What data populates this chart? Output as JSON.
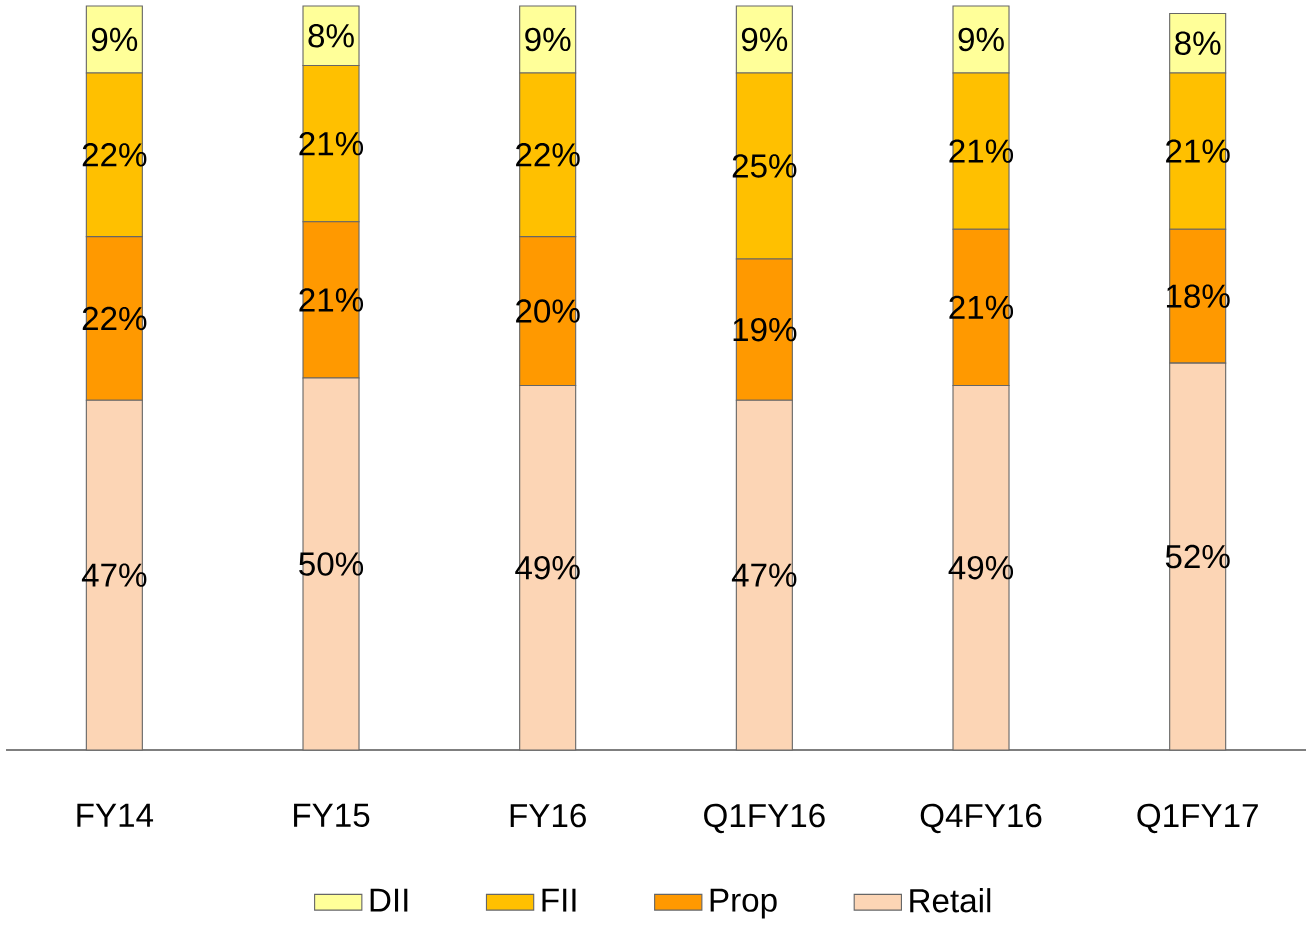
{
  "chart_data": {
    "type": "bar",
    "stacked": true,
    "legend": "bottom",
    "categories": [
      "FY14",
      "FY15",
      "FY16",
      "Q1FY16",
      "Q4FY16",
      "Q1FY17"
    ],
    "series": [
      {
        "name": "Retail",
        "color": "#fcd5b5",
        "values": [
          47,
          50,
          49,
          47,
          49,
          52
        ],
        "value_labels": [
          "47%",
          "50%",
          "49%",
          "47%",
          "49%",
          "52%"
        ]
      },
      {
        "name": "Prop",
        "color": "#ff9900",
        "values": [
          22,
          21,
          20,
          19,
          21,
          18
        ],
        "value_labels": [
          "22%",
          "21%",
          "20%",
          "19%",
          "21%",
          "18%"
        ]
      },
      {
        "name": "FII",
        "color": "#ffc000",
        "values": [
          22,
          21,
          22,
          25,
          21,
          21
        ],
        "value_labels": [
          "22%",
          "21%",
          "22%",
          "25%",
          "21%",
          "21%"
        ]
      },
      {
        "name": "DII",
        "color": "#ffff99",
        "values": [
          9,
          8,
          9,
          9,
          9,
          8
        ],
        "value_labels": [
          "9%",
          "8%",
          "9%",
          "9%",
          "9%",
          "8%"
        ]
      }
    ]
  }
}
